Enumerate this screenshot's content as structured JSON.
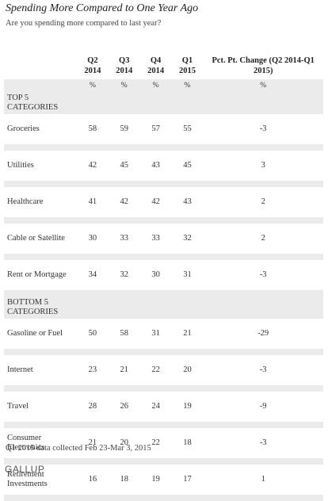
{
  "header": {
    "title": "Spending More Compared to One Year Ago",
    "subtitle": "Are you spending more compared to last year?"
  },
  "table": {
    "columns": [
      "Q2 2014",
      "Q3 2014",
      "Q4 2014",
      "Q1 2015",
      "Pct. Pt. Change (Q2 2014-Q1 2015)"
    ],
    "units": [
      "%",
      "%",
      "%",
      "%",
      "%"
    ],
    "sections": [
      {
        "label": "TOP 5 CATEGORIES",
        "rows": [
          {
            "label": "Groceries",
            "values": [
              58,
              59,
              57,
              55,
              -3
            ]
          },
          {
            "label": "Utilities",
            "values": [
              42,
              45,
              43,
              45,
              3
            ]
          },
          {
            "label": "Healthcare",
            "values": [
              41,
              42,
              42,
              43,
              2
            ]
          },
          {
            "label": "Cable or Satellite",
            "values": [
              30,
              33,
              33,
              32,
              2
            ]
          },
          {
            "label": "Rent or Mortgage",
            "values": [
              34,
              32,
              30,
              31,
              -3
            ]
          }
        ]
      },
      {
        "label": "BOTTOM 5 CATEGORIES",
        "rows": [
          {
            "label": "Gasoline or Fuel",
            "values": [
              50,
              58,
              31,
              21,
              -29
            ]
          },
          {
            "label": "Internet",
            "values": [
              23,
              21,
              22,
              20,
              -3
            ]
          },
          {
            "label": "Travel",
            "values": [
              28,
              26,
              24,
              19,
              -9
            ]
          },
          {
            "label": "Consumer Electronics",
            "values": [
              21,
              20,
              22,
              18,
              -3
            ]
          },
          {
            "label": "Retirement Investments",
            "values": [
              16,
              18,
              19,
              17,
              1
            ]
          }
        ]
      }
    ]
  },
  "footer": {
    "note": "Q1 2015 data collected Feb 23-Mar 3, 2015",
    "brand": "GALLUP"
  }
}
